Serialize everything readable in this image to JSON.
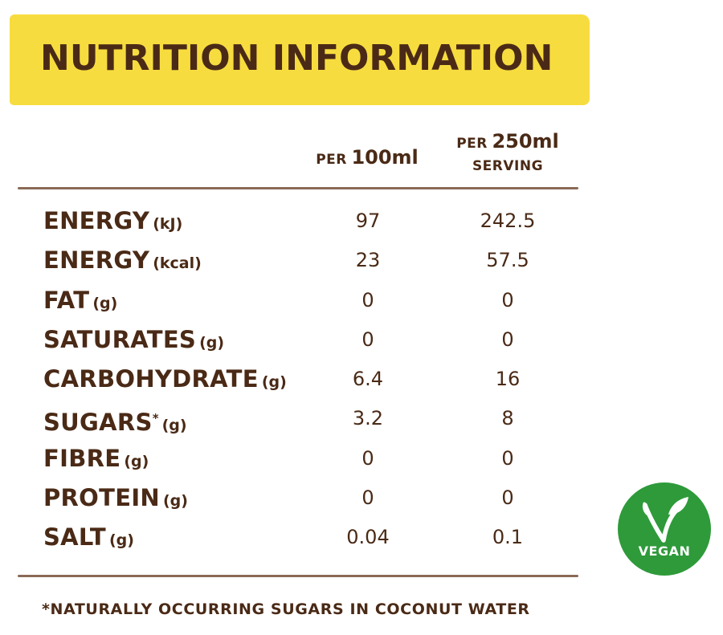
{
  "header": {
    "title": "NUTRITION INFORMATION"
  },
  "columns": {
    "col1": {
      "prefix": "PER",
      "amount": "100ml"
    },
    "col2": {
      "prefix": "PER",
      "amount": "250ml",
      "suffix": "SERVING"
    }
  },
  "rows": [
    {
      "name": "ENERGY",
      "unit": "(kJ)",
      "per100": "97",
      "per250": "242.5"
    },
    {
      "name": "ENERGY",
      "unit": "(kcal)",
      "per100": "23",
      "per250": "57.5"
    },
    {
      "name": "FAT",
      "unit": "(g)",
      "per100": "0",
      "per250": "0"
    },
    {
      "name": "SATURATES",
      "unit": "(g)",
      "per100": "0",
      "per250": "0"
    },
    {
      "name": "CARBOHYDRATE",
      "unit": "(g)",
      "per100": "6.4",
      "per250": "16"
    },
    {
      "name": "SUGARS",
      "mark": "*",
      "unit": "(g)",
      "per100": "3.2",
      "per250": "8"
    },
    {
      "name": "FIBRE",
      "unit": "(g)",
      "per100": "0",
      "per250": "0"
    },
    {
      "name": "PROTEIN",
      "unit": "(g)",
      "per100": "0",
      "per250": "0"
    },
    {
      "name": "SALT",
      "unit": "(g)",
      "per100": "0.04",
      "per250": "0.1"
    }
  ],
  "footnote": "*NATURALLY OCCURRING SUGARS IN COCONUT WATER",
  "badge": {
    "label": "VEGAN",
    "icon": "vegan-leaf-v-icon",
    "color": "#2e9a3a"
  },
  "colors": {
    "banner": "#f7dc3f",
    "text": "#4a2a16",
    "rule": "#8a6a55"
  }
}
